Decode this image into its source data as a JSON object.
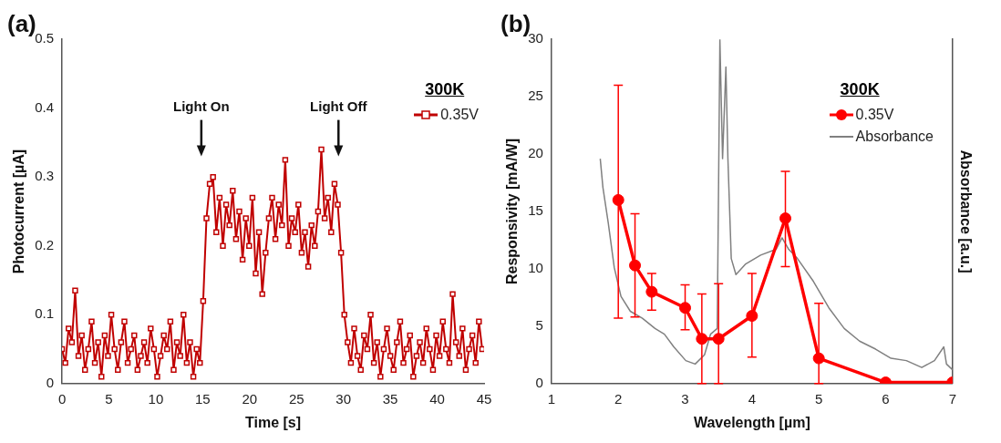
{
  "chart_data": [
    {
      "type": "line",
      "title": "(a)",
      "xlabel": "Time [s]",
      "ylabel": "Photocurrent [µA]",
      "legend": "top right",
      "legend_title": "300K",
      "marker": "square",
      "xlim": [
        0,
        45
      ],
      "xticks": [
        0,
        5,
        10,
        15,
        20,
        25,
        30,
        35,
        40,
        45
      ],
      "ylim": [
        0,
        0.5
      ],
      "yticks": [
        0,
        0.1,
        0.2,
        0.3,
        0.4,
        0.5
      ],
      "annotations": [
        "Light On",
        "Light Off"
      ],
      "x": [
        0,
        0.35,
        0.7,
        1.05,
        1.4,
        1.75,
        2.1,
        2.45,
        2.8,
        3.15,
        3.5,
        3.85,
        4.2,
        4.55,
        4.9,
        5.25,
        5.6,
        5.95,
        6.3,
        6.65,
        7,
        7.35,
        7.7,
        8.05,
        8.4,
        8.75,
        9.1,
        9.45,
        9.8,
        10.15,
        10.5,
        10.85,
        11.2,
        11.55,
        11.9,
        12.25,
        12.6,
        12.95,
        13.3,
        13.65,
        14,
        14.35,
        14.7,
        15.05,
        15.4,
        15.75,
        16.1,
        16.45,
        16.8,
        17.15,
        17.5,
        17.85,
        18.2,
        18.55,
        18.9,
        19.25,
        19.6,
        19.95,
        20.3,
        20.65,
        21,
        21.35,
        21.7,
        22.05,
        22.4,
        22.75,
        23.1,
        23.45,
        23.8,
        24.15,
        24.5,
        24.85,
        25.2,
        25.55,
        25.9,
        26.25,
        26.6,
        26.95,
        27.3,
        27.65,
        28,
        28.35,
        28.7,
        29.05,
        29.4,
        29.75,
        30.1,
        30.45,
        30.8,
        31.15,
        31.5,
        31.85,
        32.2,
        32.55,
        32.9,
        33.25,
        33.6,
        33.95,
        34.3,
        34.65,
        35,
        35.35,
        35.7,
        36.05,
        36.4,
        36.75,
        37.1,
        37.45,
        37.8,
        38.15,
        38.5,
        38.85,
        39.2,
        39.55,
        39.9,
        40.25,
        40.6,
        40.95,
        41.3,
        41.65,
        42,
        42.35,
        42.7,
        43.05,
        43.4,
        43.75,
        44.1,
        44.45,
        44.8
      ],
      "series": [
        {
          "name": "0.35V",
          "color": "#c00000",
          "values": [
            0.05,
            0.03,
            0.08,
            0.06,
            0.135,
            0.04,
            0.07,
            0.02,
            0.05,
            0.09,
            0.03,
            0.06,
            0.01,
            0.07,
            0.04,
            0.1,
            0.05,
            0.02,
            0.06,
            0.09,
            0.03,
            0.05,
            0.07,
            0.02,
            0.04,
            0.06,
            0.03,
            0.08,
            0.05,
            0.01,
            0.04,
            0.07,
            0.05,
            0.09,
            0.02,
            0.06,
            0.04,
            0.1,
            0.03,
            0.06,
            0.01,
            0.05,
            0.03,
            0.12,
            0.24,
            0.29,
            0.3,
            0.22,
            0.27,
            0.2,
            0.26,
            0.23,
            0.28,
            0.21,
            0.25,
            0.18,
            0.24,
            0.2,
            0.27,
            0.16,
            0.22,
            0.13,
            0.19,
            0.24,
            0.27,
            0.21,
            0.26,
            0.23,
            0.325,
            0.2,
            0.24,
            0.22,
            0.26,
            0.19,
            0.22,
            0.17,
            0.23,
            0.2,
            0.25,
            0.34,
            0.24,
            0.27,
            0.22,
            0.29,
            0.26,
            0.19,
            0.1,
            0.06,
            0.03,
            0.08,
            0.04,
            0.02,
            0.07,
            0.05,
            0.1,
            0.03,
            0.06,
            0.01,
            0.05,
            0.08,
            0.04,
            0.02,
            0.06,
            0.09,
            0.03,
            0.05,
            0.07,
            0.01,
            0.04,
            0.06,
            0.03,
            0.08,
            0.05,
            0.02,
            0.07,
            0.04,
            0.09,
            0.05,
            0.03,
            0.13,
            0.06,
            0.04,
            0.08,
            0.02,
            0.05,
            0.07,
            0.03,
            0.09,
            0.05
          ]
        }
      ]
    },
    {
      "type": "line",
      "title": "(b)",
      "xlabel": "Wavelength [µm]",
      "ylabel": "Responsivity [mA/W]",
      "y2label": "Absorbance [a.u.]",
      "legend": "top right",
      "legend_title": "300K",
      "xlim": [
        1,
        7
      ],
      "xticks": [
        1,
        2,
        3,
        4,
        5,
        6,
        7
      ],
      "ylim": [
        0,
        30
      ],
      "yticks": [
        0,
        5,
        10,
        15,
        20,
        25,
        30
      ],
      "series": [
        {
          "name": "0.35V",
          "color": "#ff0000",
          "marker": "circle",
          "x": [
            2,
            2.25,
            2.5,
            3,
            3.25,
            3.5,
            4,
            4.5,
            5,
            6,
            7
          ],
          "values": [
            16,
            10.3,
            8,
            6.6,
            3.9,
            3.9,
            5.9,
            14.4,
            2.2,
            0.1,
            0.1
          ],
          "errors": [
            [
              5.7,
              26
            ],
            [
              5.8,
              14.8
            ],
            [
              6.4,
              9.6
            ],
            [
              4.7,
              8.6
            ],
            [
              0,
              7.8
            ],
            [
              0,
              8.7
            ],
            [
              2.3,
              9.6
            ],
            [
              10.2,
              18.5
            ],
            [
              0,
              7
            ],
            null,
            null
          ]
        },
        {
          "name": "Absorbance",
          "color": "#808080",
          "marker": "none",
          "x": [
            1.73,
            1.77,
            1.85,
            1.94,
            2.04,
            2.18,
            2.36,
            2.55,
            2.69,
            2.83,
            3.01,
            3.15,
            3.29,
            3.38,
            3.48,
            3.5,
            3.52,
            3.56,
            3.61,
            3.64,
            3.69,
            3.76,
            3.9,
            4.13,
            4.36,
            4.45,
            4.55,
            4.68,
            4.92,
            5.15,
            5.38,
            5.61,
            5.85,
            6.08,
            6.31,
            6.54,
            6.73,
            6.87,
            6.91,
            7
          ],
          "values": [
            19.6,
            17.1,
            14,
            10.1,
            7.6,
            6.3,
            5.7,
            4.8,
            4.3,
            3.2,
            2,
            1.7,
            2.5,
            4.3,
            4.8,
            17.1,
            30,
            19.6,
            27.6,
            19.6,
            10.9,
            9.5,
            10.4,
            11.2,
            11.7,
            12.7,
            11.7,
            10.9,
            8.9,
            6.6,
            4.8,
            3.7,
            3,
            2.2,
            2,
            1.4,
            2,
            3.2,
            1.7,
            1.2
          ]
        }
      ]
    }
  ]
}
